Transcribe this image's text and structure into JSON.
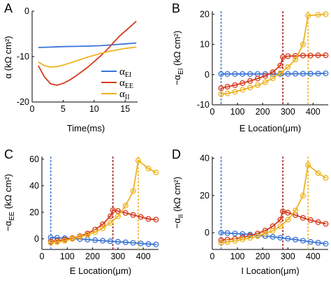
{
  "colors": {
    "blue": "#3a75d6",
    "red": "#d63b1e",
    "yellow": "#eeb320",
    "dark_red": "#a01818"
  },
  "chart_data": [
    {
      "panel": "A",
      "type": "line",
      "xlabel": "Time(ms)",
      "ylabel": "α (kΩ cm²)",
      "xlim": [
        0,
        17
      ],
      "ylim": [
        -20,
        0
      ],
      "xticks": [
        0,
        5,
        10,
        15
      ],
      "yticks": [
        0,
        -10,
        -20
      ],
      "legend_position": "right",
      "series": [
        {
          "name": "α_EI",
          "name_main": "α",
          "name_sub": "EI",
          "color": "#3a75d6",
          "x": [
            1,
            3,
            5,
            7,
            9,
            11,
            13,
            15,
            16.8
          ],
          "y": [
            -8.0,
            -7.9,
            -7.8,
            -7.75,
            -7.7,
            -7.6,
            -7.4,
            -7.2,
            -7.0
          ]
        },
        {
          "name": "α_EE",
          "name_main": "α",
          "name_sub": "EE",
          "color": "#d63b1e",
          "x": [
            1,
            2,
            3,
            4,
            5,
            6,
            7,
            8,
            9,
            10,
            11,
            12,
            13,
            14,
            15,
            16,
            16.8
          ],
          "y": [
            -12,
            -14.5,
            -16.0,
            -16.3,
            -15.9,
            -15.2,
            -14.3,
            -13.3,
            -12.3,
            -11.1,
            -9.9,
            -8.6,
            -7.1,
            -5.6,
            -4.4,
            -3.2,
            -2.2
          ]
        },
        {
          "name": "α_II",
          "name_main": "α",
          "name_sub": "II",
          "color": "#eeb320",
          "x": [
            1,
            2,
            3,
            4,
            5,
            7,
            9,
            11,
            13,
            15,
            16.8
          ],
          "y": [
            -11.2,
            -12.0,
            -12.3,
            -12.2,
            -11.9,
            -11.0,
            -10.1,
            -9.3,
            -8.7,
            -8.2,
            -7.9
          ]
        }
      ]
    },
    {
      "panel": "B",
      "type": "line",
      "xlabel": "E Location(μm)",
      "ylabel": "−α_EI (kΩ cm²)",
      "ylabel_main": "−α",
      "ylabel_sub": "EI",
      "ylabel_tail": " (kΩ cm²)",
      "xlim": [
        0,
        460
      ],
      "ylim": [
        -10,
        21
      ],
      "xticks": [
        0,
        100,
        200,
        300,
        400
      ],
      "yticks": [
        -10,
        0,
        10,
        20
      ],
      "vlines": [
        {
          "x": 35,
          "color": "#3a75d6"
        },
        {
          "x": 280,
          "color": "#a01818"
        },
        {
          "x": 380,
          "color": "#eeb320"
        }
      ],
      "series": [
        {
          "color": "#3a75d6",
          "x": [
            35,
            60,
            90,
            120,
            150,
            180,
            210,
            240,
            270,
            300,
            330,
            360,
            390,
            420,
            450
          ],
          "y": [
            0.2,
            0.2,
            0.2,
            0.2,
            0.2,
            0.2,
            0.2,
            0.2,
            0.2,
            0.25,
            0.3,
            0.3,
            0.3,
            0.35,
            0.4
          ]
        },
        {
          "color": "#d63b1e",
          "x": [
            35,
            60,
            90,
            120,
            150,
            180,
            210,
            240,
            270,
            280,
            300,
            330,
            360,
            390,
            420,
            450
          ],
          "y": [
            -4.5,
            -4.0,
            -3.5,
            -2.8,
            -2.1,
            -1.3,
            -0.4,
            0.8,
            3.0,
            5.8,
            6.1,
            6.2,
            6.3,
            6.3,
            6.4,
            6.4
          ]
        },
        {
          "color": "#eeb320",
          "x": [
            35,
            60,
            90,
            120,
            150,
            180,
            210,
            240,
            270,
            300,
            330,
            360,
            380,
            420,
            450
          ],
          "y": [
            -6.5,
            -6.2,
            -5.7,
            -5.0,
            -4.3,
            -3.5,
            -2.5,
            -1.2,
            0.5,
            2.5,
            5.0,
            10.0,
            19.5,
            19.8,
            20.0
          ]
        }
      ]
    },
    {
      "panel": "C",
      "type": "line",
      "xlabel": "E Location(μm)",
      "ylabel": "−α_EE (kΩ cm²)",
      "ylabel_main": "−α",
      "ylabel_sub": "EE",
      "ylabel_tail": " (kΩ cm²)",
      "xlim": [
        0,
        460
      ],
      "ylim": [
        -8,
        62
      ],
      "xticks": [
        0,
        100,
        200,
        300,
        400
      ],
      "yticks": [
        0,
        20,
        40,
        60
      ],
      "vlines": [
        {
          "x": 35,
          "color": "#3a75d6"
        },
        {
          "x": 280,
          "color": "#a01818"
        },
        {
          "x": 380,
          "color": "#eeb320"
        }
      ],
      "series": [
        {
          "color": "#3a75d6",
          "x": [
            35,
            60,
            90,
            120,
            150,
            180,
            210,
            240,
            270,
            300,
            330,
            360,
            390,
            420,
            450
          ],
          "y": [
            1.0,
            0.8,
            0.5,
            0.2,
            -0.2,
            -0.6,
            -1.0,
            -1.4,
            -1.8,
            -2.2,
            -2.6,
            -3.0,
            -3.5,
            -3.9,
            -4.2
          ]
        },
        {
          "color": "#d63b1e",
          "x": [
            35,
            60,
            90,
            120,
            150,
            180,
            210,
            240,
            270,
            280,
            300,
            330,
            360,
            390,
            420,
            450
          ],
          "y": [
            -2.0,
            -1.5,
            -0.5,
            0.5,
            2.0,
            4.0,
            7.0,
            11.0,
            17.0,
            21.5,
            21.0,
            19.5,
            18.0,
            16.5,
            15.0,
            14.5
          ]
        },
        {
          "color": "#eeb320",
          "x": [
            35,
            60,
            90,
            120,
            150,
            180,
            210,
            240,
            270,
            300,
            330,
            360,
            380,
            420,
            450
          ],
          "y": [
            -3.0,
            -2.5,
            -1.5,
            0.0,
            1.5,
            3.0,
            5.0,
            8.0,
            12.0,
            17.0,
            25.0,
            36.0,
            59.0,
            53.0,
            50.0
          ]
        }
      ]
    },
    {
      "panel": "D",
      "type": "line",
      "xlabel": "I Location(μm)",
      "ylabel": "−α_II (kΩ cm²)",
      "ylabel_main": "−α",
      "ylabel_sub": "II",
      "ylabel_tail": " (kΩ cm²)",
      "xlim": [
        0,
        460
      ],
      "ylim": [
        -9,
        41
      ],
      "xticks": [
        0,
        100,
        200,
        300,
        400
      ],
      "yticks": [
        0,
        20,
        40
      ],
      "vlines": [
        {
          "x": 35,
          "color": "#3a75d6"
        },
        {
          "x": 280,
          "color": "#a01818"
        },
        {
          "x": 380,
          "color": "#eeb320"
        }
      ],
      "series": [
        {
          "color": "#3a75d6",
          "x": [
            35,
            60,
            90,
            120,
            150,
            180,
            210,
            240,
            270,
            300,
            330,
            360,
            390,
            420,
            450
          ],
          "y": [
            0.0,
            -0.2,
            -0.4,
            -0.7,
            -1.0,
            -1.4,
            -1.8,
            -2.2,
            -2.7,
            -3.2,
            -3.7,
            -4.3,
            -4.9,
            -5.4,
            -5.9
          ]
        },
        {
          "color": "#d63b1e",
          "x": [
            35,
            60,
            90,
            120,
            150,
            180,
            210,
            240,
            270,
            280,
            300,
            330,
            360,
            390,
            420,
            450
          ],
          "y": [
            -4.0,
            -3.7,
            -3.2,
            -2.5,
            -1.6,
            -0.4,
            1.2,
            3.5,
            7.0,
            11.5,
            10.8,
            9.5,
            8.0,
            6.8,
            5.7,
            4.8
          ]
        },
        {
          "color": "#eeb320",
          "x": [
            35,
            60,
            90,
            120,
            150,
            180,
            210,
            240,
            270,
            300,
            330,
            360,
            380,
            420,
            450
          ],
          "y": [
            -5.5,
            -5.0,
            -4.4,
            -3.6,
            -2.8,
            -1.8,
            -0.5,
            1.0,
            3.5,
            7.0,
            12.0,
            20.0,
            36.5,
            32.0,
            29.5
          ]
        }
      ]
    }
  ]
}
